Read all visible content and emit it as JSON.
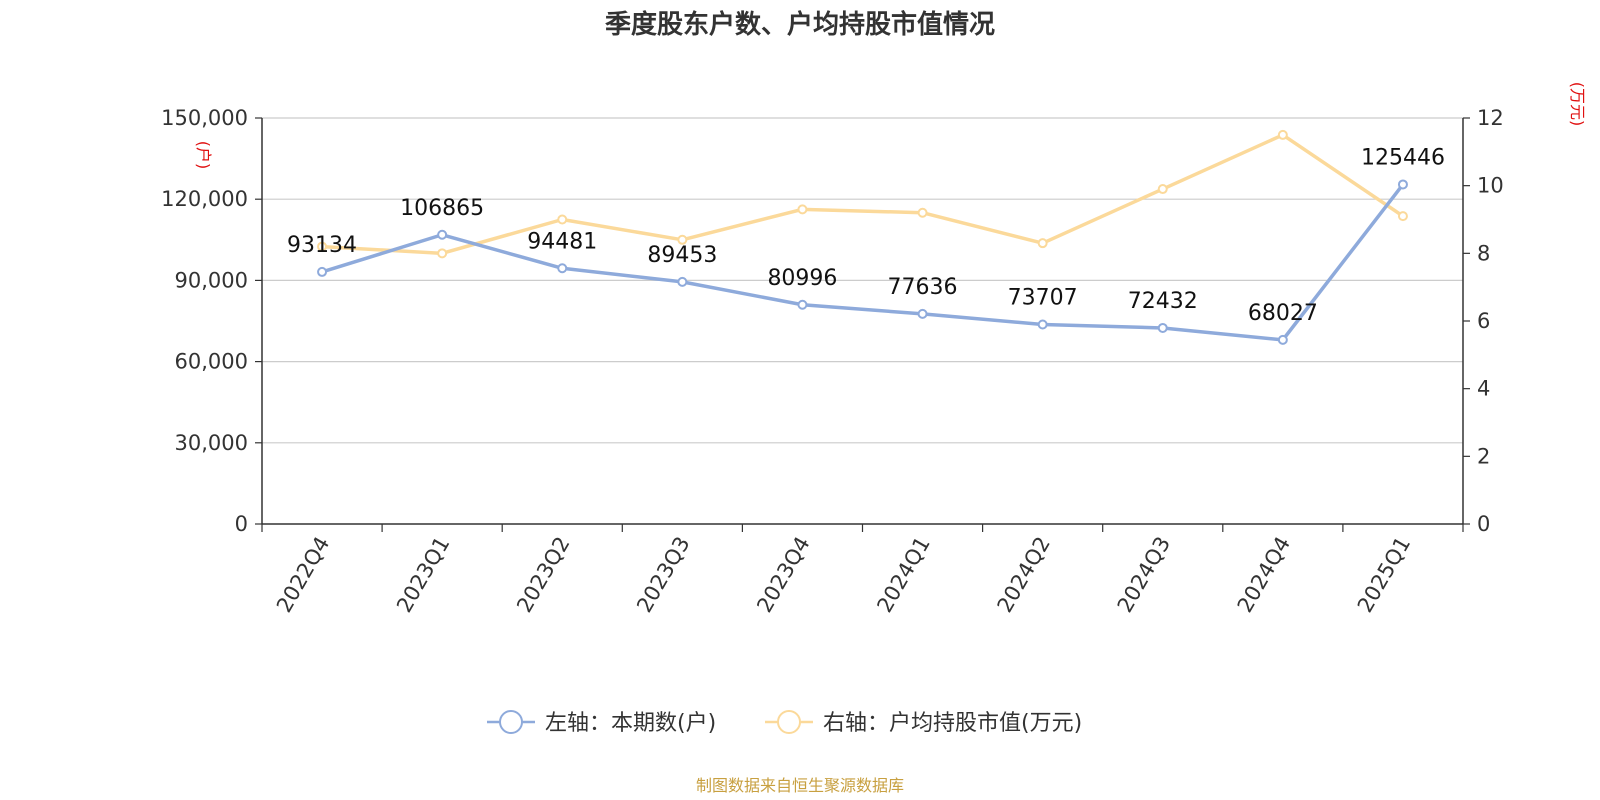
{
  "chart_data": {
    "type": "line",
    "title": "季度股东户数、户均持股市值情况",
    "categories": [
      "2022Q4",
      "2023Q1",
      "2023Q2",
      "2023Q3",
      "2023Q4",
      "2024Q1",
      "2024Q2",
      "2024Q3",
      "2024Q4",
      "2025Q1"
    ],
    "left_axis": {
      "unit": "(户)",
      "ylim": [
        0,
        150000
      ],
      "ticks": [
        0,
        30000,
        60000,
        90000,
        120000,
        150000
      ],
      "tick_labels": [
        "0",
        "30,000",
        "60,000",
        "90,000",
        "120,000",
        "150,000"
      ]
    },
    "right_axis": {
      "unit": "(万元)",
      "ylim": [
        0,
        12
      ],
      "ticks": [
        0,
        2,
        4,
        6,
        8,
        10,
        12
      ],
      "tick_labels": [
        "0",
        "2",
        "4",
        "6",
        "8",
        "10",
        "12"
      ]
    },
    "series": [
      {
        "name": "左轴：本期数(户)",
        "axis": "left",
        "color": "#8eaadb",
        "values": [
          93134,
          106865,
          94481,
          89453,
          80996,
          77636,
          73707,
          72432,
          68027,
          125446
        ],
        "labels": [
          "93134",
          "106865",
          "94481",
          "89453",
          "80996",
          "77636",
          "73707",
          "72432",
          "68027",
          "125446"
        ]
      },
      {
        "name": "右轴：户均持股市值(万元)",
        "axis": "right",
        "color": "#fbd99a",
        "values": [
          8.2,
          8.0,
          9.0,
          8.4,
          9.3,
          9.2,
          8.3,
          9.9,
          11.5,
          9.1
        ]
      }
    ],
    "grid": true,
    "legend_position": "bottom-center"
  },
  "source": "制图数据来自恒生聚源数据库"
}
